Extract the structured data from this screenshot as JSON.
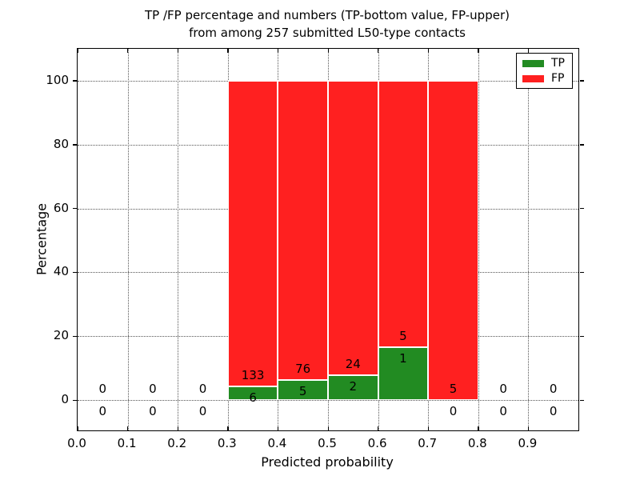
{
  "chart_data": {
    "type": "bar",
    "stacked": true,
    "title_line1": "TP /FP percentage and numbers (TP-bottom value, FP-upper)",
    "title_line2": "from among 257 submitted L50-type contacts",
    "xlabel": "Predicted probability",
    "ylabel": "Percentage",
    "xlim": [
      0.0,
      1.0
    ],
    "ylim": [
      -9.5,
      110
    ],
    "xtick_labels": [
      "0.0",
      "0.1",
      "0.2",
      "0.3",
      "0.4",
      "0.5",
      "0.6",
      "0.7",
      "0.8",
      "0.9"
    ],
    "ytick_values": [
      0,
      20,
      40,
      60,
      80,
      100
    ],
    "grid": "dotted",
    "bar_width": 0.1,
    "bar_value_unit": "percent of bin total (TP+FP stacked to 100%)",
    "total_submitted_contacts": 257,
    "colors": {
      "tp": "#228b22",
      "fp": "#ff2020",
      "bar_edge": "#ffffff"
    },
    "legend": {
      "position": "upper right",
      "entries": [
        {
          "name": "TP"
        },
        {
          "name": "FP"
        }
      ]
    },
    "bins": [
      {
        "x": 0.0,
        "tp": 0,
        "fp": 0
      },
      {
        "x": 0.1,
        "tp": 0,
        "fp": 0
      },
      {
        "x": 0.2,
        "tp": 0,
        "fp": 0
      },
      {
        "x": 0.3,
        "tp": 6,
        "fp": 133
      },
      {
        "x": 0.4,
        "tp": 5,
        "fp": 76
      },
      {
        "x": 0.5,
        "tp": 2,
        "fp": 24
      },
      {
        "x": 0.6,
        "tp": 1,
        "fp": 5
      },
      {
        "x": 0.7,
        "tp": 0,
        "fp": 5
      },
      {
        "x": 0.8,
        "tp": 0,
        "fp": 0
      },
      {
        "x": 0.9,
        "tp": 0,
        "fp": 0
      }
    ]
  }
}
